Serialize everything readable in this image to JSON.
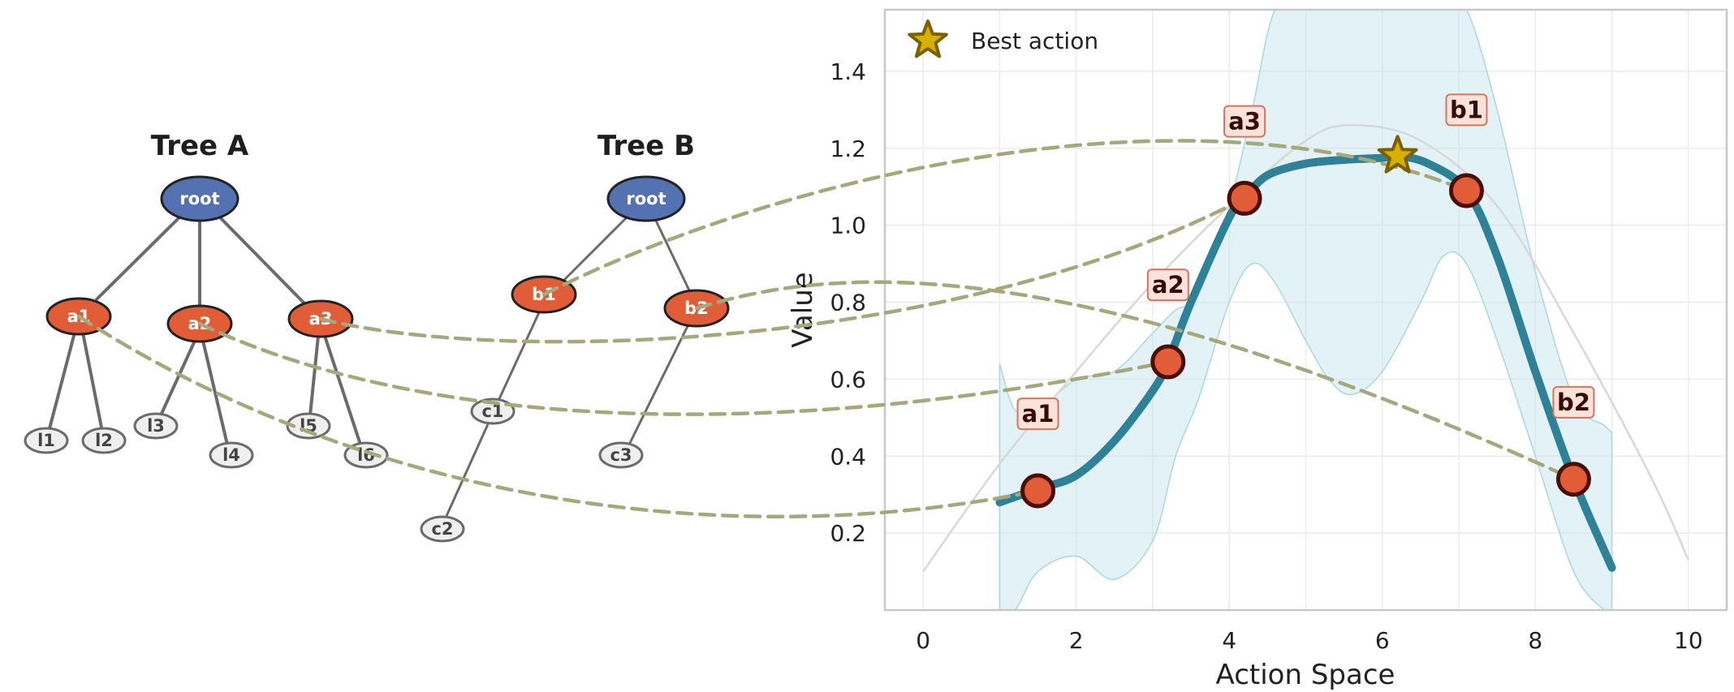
{
  "chart_data": {
    "type": "line",
    "xlabel": "Action Space",
    "ylabel": "Value",
    "xlim": [
      -0.5,
      10.5
    ],
    "ylim": [
      0.0,
      1.56
    ],
    "x_ticks": [
      0,
      2,
      4,
      6,
      8,
      10
    ],
    "y_ticks": [
      0.2,
      0.4,
      0.6,
      0.8,
      1.0,
      1.2,
      1.4
    ],
    "grid": true,
    "legend": {
      "position": "top-left",
      "entries": [
        "Best action"
      ]
    },
    "value_curve": {
      "x": [
        1.0,
        1.5,
        2.0,
        2.5,
        3.0,
        3.2,
        3.5,
        4.0,
        4.2,
        4.5,
        5.0,
        5.5,
        6.0,
        6.2,
        6.6,
        7.1,
        7.5,
        8.0,
        8.5,
        9.0
      ],
      "y": [
        0.28,
        0.315,
        0.35,
        0.44,
        0.57,
        0.645,
        0.8,
        1.02,
        1.07,
        1.13,
        1.16,
        1.17,
        1.175,
        1.18,
        1.16,
        1.09,
        0.92,
        0.62,
        0.34,
        0.11
      ]
    },
    "uncertainty_band": {
      "x": [
        1.0,
        1.2,
        1.5,
        2.0,
        2.5,
        3.0,
        3.3,
        3.6,
        4.0,
        4.3,
        4.6,
        5.0,
        5.3,
        5.6,
        6.0,
        6.5,
        6.8,
        7.1,
        7.5,
        8.0,
        8.5,
        8.9,
        9.0
      ],
      "upper": [
        0.64,
        0.52,
        0.52,
        0.6,
        0.62,
        0.72,
        0.78,
        0.82,
        1.05,
        1.3,
        1.56,
        1.56,
        1.56,
        1.56,
        1.56,
        1.56,
        1.56,
        1.56,
        1.3,
        0.88,
        0.55,
        0.48,
        0.46
      ],
      "lower": [
        0.0,
        0.0,
        0.1,
        0.14,
        0.08,
        0.18,
        0.4,
        0.55,
        0.8,
        0.9,
        0.85,
        0.7,
        0.6,
        0.56,
        0.62,
        0.8,
        0.92,
        0.9,
        0.7,
        0.4,
        0.1,
        0.0,
        0.0
      ]
    },
    "prior_curve": {
      "x": [
        0.0,
        1.0,
        2.0,
        3.0,
        4.0,
        5.0,
        5.6,
        6.5,
        7.5,
        8.5,
        9.5,
        10.0
      ],
      "y": [
        0.1,
        0.38,
        0.62,
        0.85,
        1.05,
        1.22,
        1.26,
        1.22,
        1.05,
        0.72,
        0.35,
        0.13
      ]
    },
    "points": [
      {
        "label": "a1",
        "x": 1.5,
        "y": 0.31,
        "label_x": 1.5,
        "label_y": 0.51
      },
      {
        "label": "a2",
        "x": 3.2,
        "y": 0.645,
        "label_x": 3.2,
        "label_y": 0.845
      },
      {
        "label": "a3",
        "x": 4.2,
        "y": 1.07,
        "label_x": 4.2,
        "label_y": 1.27
      },
      {
        "label": "b1",
        "x": 7.1,
        "y": 1.09,
        "label_x": 7.1,
        "label_y": 1.3
      },
      {
        "label": "b2",
        "x": 8.5,
        "y": 0.34,
        "label_x": 8.5,
        "label_y": 0.54
      }
    ],
    "best_action": {
      "x": 6.2,
      "y": 1.18
    }
  },
  "trees": {
    "tree_a": {
      "title": "Tree A",
      "root": "root",
      "actions": [
        "a1",
        "a2",
        "a3"
      ],
      "leaves": [
        "l1",
        "l2",
        "l3",
        "l4",
        "l5",
        "l6"
      ]
    },
    "tree_b": {
      "title": "Tree B",
      "root": "root",
      "actions": [
        "b1",
        "b2"
      ],
      "leaves": [
        "c1",
        "c2",
        "c3"
      ]
    }
  },
  "colors": {
    "root": "#5471b1",
    "action": "#e15d38",
    "leaf": "#efefef",
    "curve": "#2e8196",
    "band": "#bfe3ec",
    "link": "#a4a87a",
    "star": "#d8b000"
  }
}
